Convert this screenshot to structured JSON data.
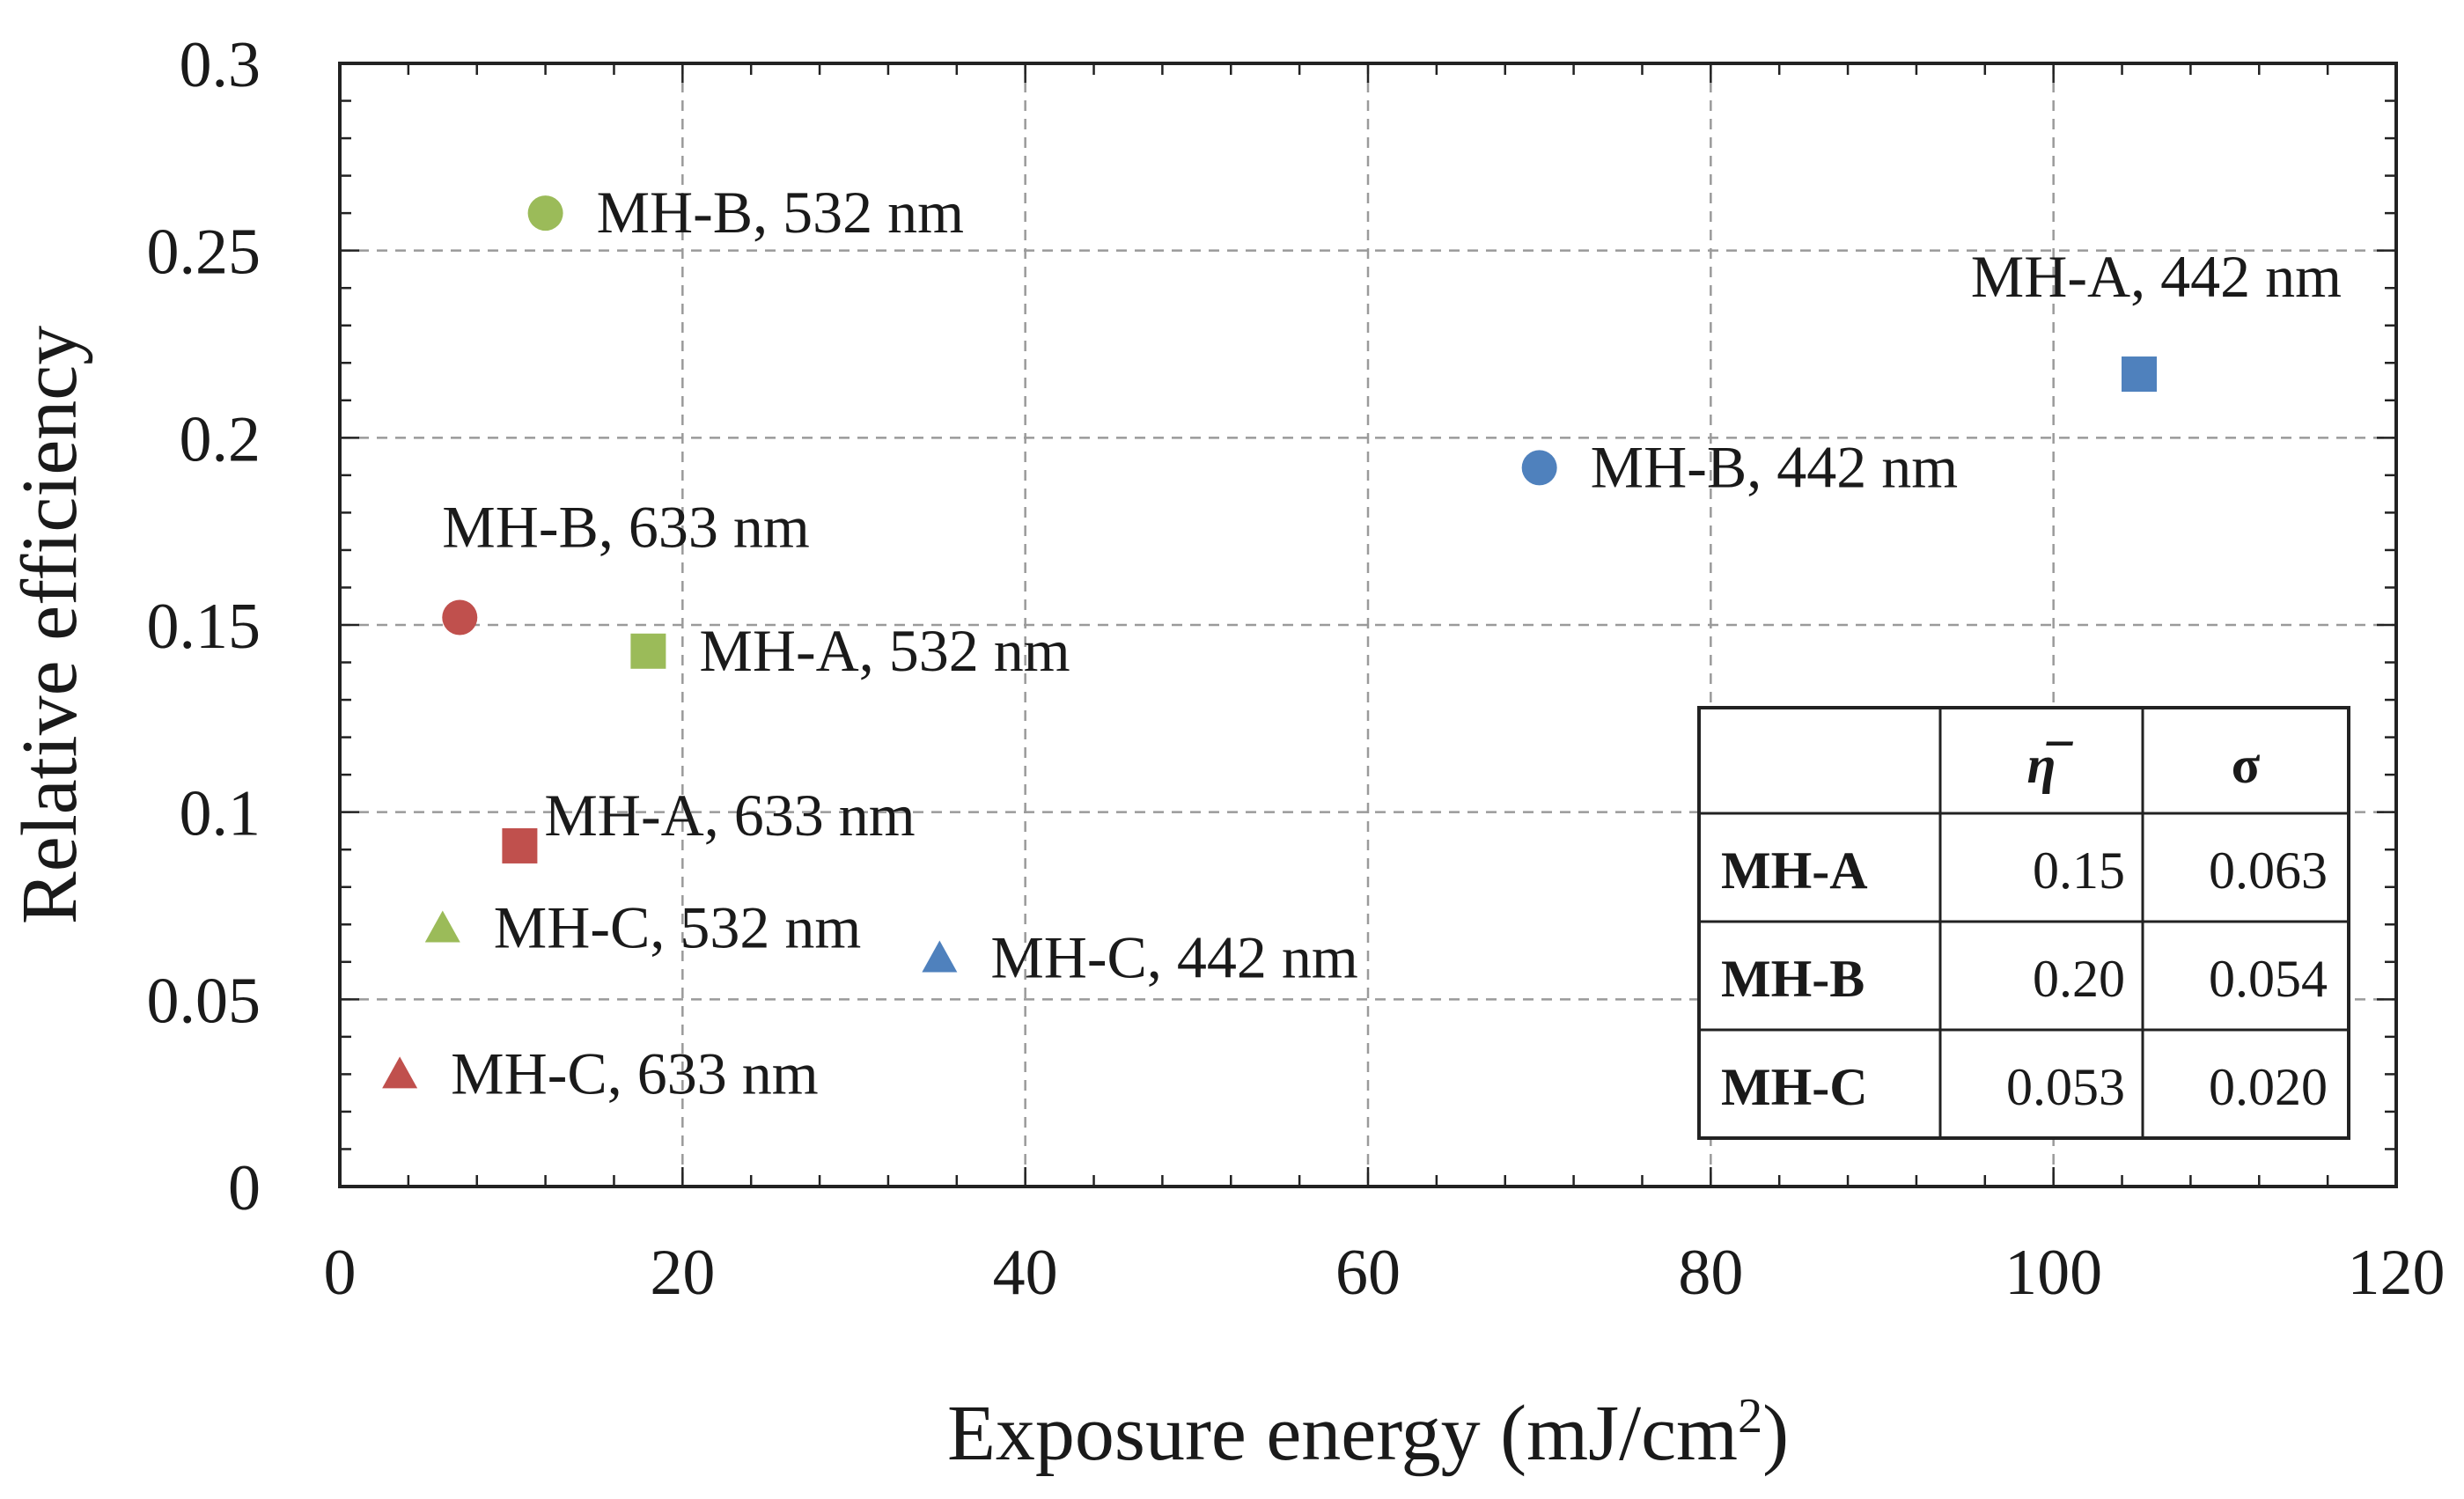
{
  "chart_data": {
    "type": "scatter",
    "title": "",
    "xlabel": "Exposure energy (mJ/cm",
    "xlabel_superscript": "2",
    "xlabel_suffix": ")",
    "ylabel": "Relative efficiency",
    "xlim": [
      0,
      120
    ],
    "ylim": [
      0,
      0.3
    ],
    "x_ticks": [
      0,
      20,
      40,
      60,
      80,
      100,
      120
    ],
    "y_ticks": [
      0,
      0.05,
      0.1,
      0.15,
      0.2,
      0.25,
      0.3
    ],
    "x_tick_labels": [
      "0",
      "20",
      "40",
      "60",
      "80",
      "100",
      "120"
    ],
    "y_tick_labels": [
      "0",
      "0.05",
      "0.1",
      "0.15",
      "0.2",
      "0.25",
      "0.3"
    ],
    "grid": true,
    "points": [
      {
        "label": "MH-B, 532 nm",
        "sample": "MH-B",
        "wavelength": "532 nm",
        "x": 12,
        "y": 0.26,
        "marker": "circle",
        "color": "#9bbb59",
        "label_pos": "right"
      },
      {
        "label": "MH-A, 442 nm",
        "sample": "MH-A",
        "wavelength": "442 nm",
        "x": 105,
        "y": 0.217,
        "marker": "square",
        "color": "#4f81bd",
        "label_pos": "above-left"
      },
      {
        "label": "MH-B, 442 nm",
        "sample": "MH-B",
        "wavelength": "442 nm",
        "x": 70,
        "y": 0.192,
        "marker": "circle",
        "color": "#4f81bd",
        "label_pos": "right"
      },
      {
        "label": "MH-B, 633 nm",
        "sample": "MH-B",
        "wavelength": "633 nm",
        "x": 7,
        "y": 0.152,
        "marker": "circle",
        "color": "#c0504d",
        "label_pos": "above"
      },
      {
        "label": "MH-A, 532 nm",
        "sample": "MH-A",
        "wavelength": "532 nm",
        "x": 18,
        "y": 0.143,
        "marker": "square",
        "color": "#9bbb59",
        "label_pos": "right"
      },
      {
        "label": "MH-A, 633 nm",
        "sample": "MH-A",
        "wavelength": "633 nm",
        "x": 10.5,
        "y": 0.091,
        "marker": "square",
        "color": "#c0504d",
        "label_pos": "right-close"
      },
      {
        "label": "MH-C, 532 nm",
        "sample": "MH-C",
        "wavelength": "532 nm",
        "x": 6,
        "y": 0.069,
        "marker": "triangle",
        "color": "#9bbb59",
        "label_pos": "right"
      },
      {
        "label": "MH-C, 442 nm",
        "sample": "MH-C",
        "wavelength": "442 nm",
        "x": 35,
        "y": 0.061,
        "marker": "triangle",
        "color": "#4f81bd",
        "label_pos": "right"
      },
      {
        "label": "MH-C, 633 nm",
        "sample": "MH-C",
        "wavelength": "633 nm",
        "x": 3.5,
        "y": 0.03,
        "marker": "triangle",
        "color": "#c0504d",
        "label_pos": "right"
      }
    ],
    "table": {
      "headers": [
        "",
        "η̅",
        "σ"
      ],
      "rows": [
        {
          "name": "MH-A",
          "mean": "0.15",
          "sigma": "0.063"
        },
        {
          "name": "MH-B",
          "mean": "0.20",
          "sigma": "0.054"
        },
        {
          "name": "MH-C",
          "mean": "0.053",
          "sigma": "0.020"
        }
      ]
    }
  }
}
